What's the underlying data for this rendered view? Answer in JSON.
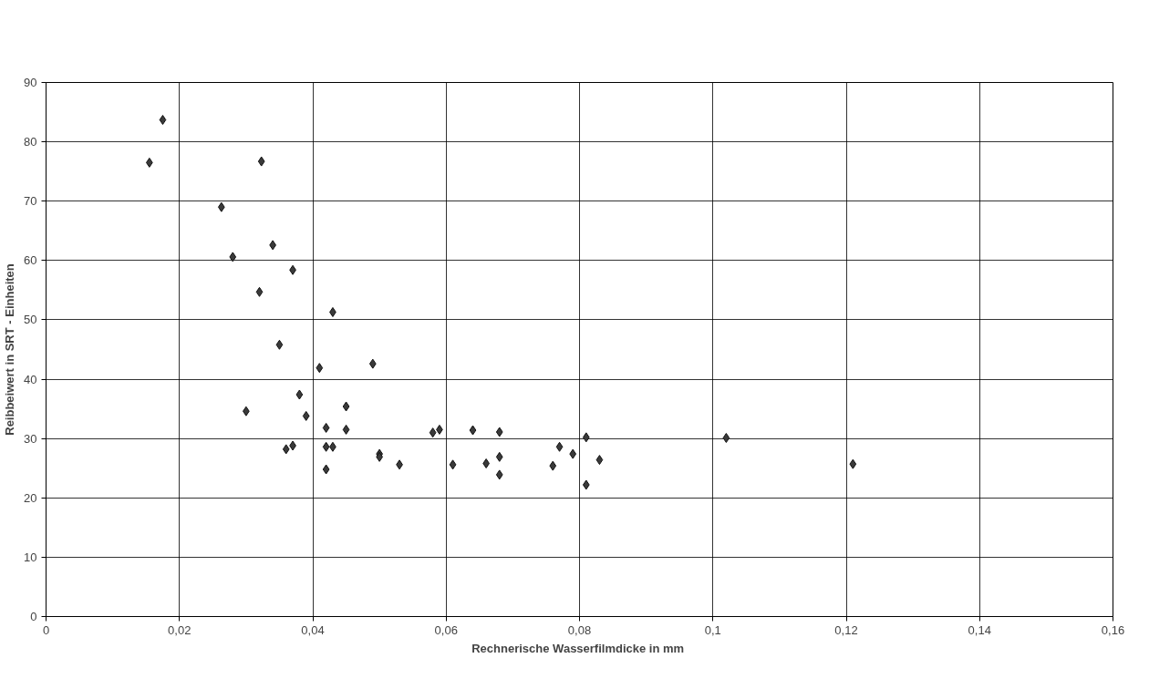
{
  "chart_data": {
    "type": "scatter",
    "xlabel": "Rechnerische Wasserfilmdicke  in mm",
    "ylabel": "Reibbeiwert in SRT - Einheiten",
    "x": [
      0.0155,
      0.0175,
      0.0263,
      0.028,
      0.03,
      0.032,
      0.0323,
      0.034,
      0.035,
      0.036,
      0.037,
      0.037,
      0.038,
      0.039,
      0.041,
      0.042,
      0.042,
      0.042,
      0.043,
      0.043,
      0.045,
      0.045,
      0.049,
      0.05,
      0.05,
      0.053,
      0.058,
      0.059,
      0.061,
      0.064,
      0.066,
      0.068,
      0.068,
      0.068,
      0.076,
      0.077,
      0.079,
      0.081,
      0.081,
      0.083,
      0.102,
      0.121
    ],
    "series": [
      {
        "color": "#3a3a3a",
        "values": [
          76.5,
          83.7,
          69,
          60.6,
          34.6,
          54.7,
          76.7,
          62.6,
          45.8,
          28.2,
          28.8,
          58.4,
          37.4,
          33.8,
          41.9,
          31.8,
          28.6,
          24.8,
          28.6,
          51.3,
          35.4,
          31.5,
          42.6,
          27.4,
          26.9,
          25.6,
          31,
          31.5,
          25.6,
          31.4,
          25.8,
          31.1,
          26.9,
          23.9,
          25.4,
          28.6,
          27.4,
          30.2,
          22.2,
          26.4,
          30.1,
          25.7
        ]
      }
    ],
    "marker": "diamond",
    "grid": true,
    "xlim": [
      0,
      0.16
    ],
    "ylim": [
      0,
      90
    ],
    "xticks": [
      0,
      {
        "value": 0.02,
        "label": "0,02"
      },
      {
        "value": 0.04,
        "label": "0,04"
      },
      {
        "value": 0.06,
        "label": "0,06"
      },
      {
        "value": 0.08,
        "label": "0,08"
      },
      {
        "value": 0.1,
        "label": "0,1"
      },
      {
        "value": 0.12,
        "label": "0,12"
      },
      {
        "value": 0.14,
        "label": "0,14"
      },
      {
        "value": 0.16,
        "label": "0,16"
      }
    ],
    "yticks": [
      0,
      10,
      20,
      30,
      40,
      50,
      60,
      70,
      80,
      90
    ]
  }
}
